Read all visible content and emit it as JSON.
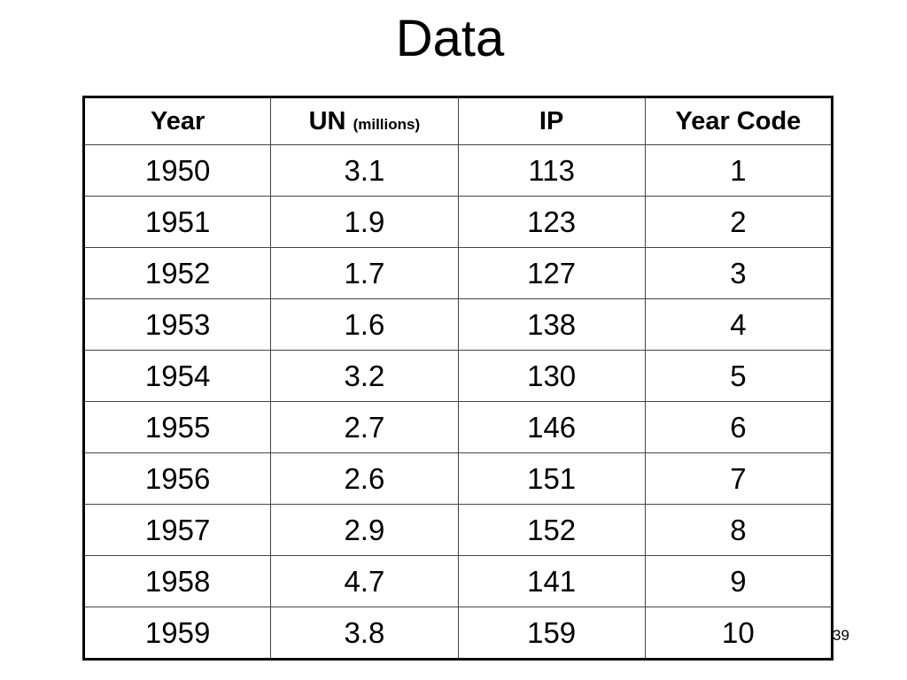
{
  "title": "Data",
  "table": {
    "header": [
      "Year",
      {
        "main": "UN",
        "note": "(millions)"
      },
      "IP",
      "Year Code"
    ],
    "rows": [
      [
        "1950",
        "3.1",
        "113",
        "1"
      ],
      [
        "1951",
        "1.9",
        "123",
        "2"
      ],
      [
        "1952",
        "1.7",
        "127",
        "3"
      ],
      [
        "1953",
        "1.6",
        "138",
        "4"
      ],
      [
        "1954",
        "3.2",
        "130",
        "5"
      ],
      [
        "1955",
        "2.7",
        "146",
        "6"
      ],
      [
        "1956",
        "2.6",
        "151",
        "7"
      ],
      [
        "1957",
        "2.9",
        "152",
        "8"
      ],
      [
        "1958",
        "4.7",
        "141",
        "9"
      ],
      [
        "1959",
        "3.8",
        "159",
        "10"
      ]
    ]
  },
  "page_number": "39"
}
